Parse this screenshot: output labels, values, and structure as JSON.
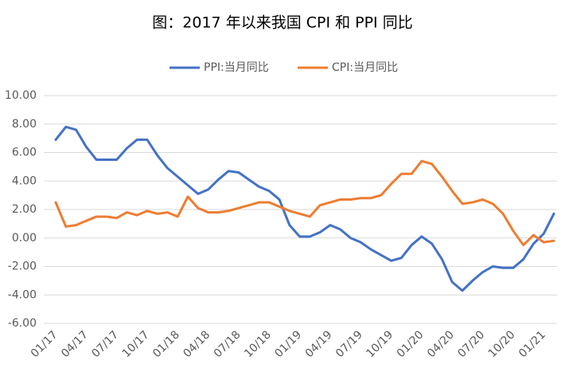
{
  "chart_data": {
    "type": "line",
    "title": "图：2017 年以来我国 CPI 和 PPI 同比",
    "categories": [
      "01/17",
      null,
      null,
      "04/17",
      null,
      null,
      "07/17",
      null,
      null,
      "10/17",
      null,
      null,
      "01/18",
      null,
      null,
      "04/18",
      null,
      null,
      "07/18",
      null,
      null,
      "10/18",
      null,
      null,
      "01/19",
      null,
      null,
      "04/19",
      null,
      null,
      "07/19",
      null,
      null,
      "10/19",
      null,
      null,
      "01/20",
      null,
      null,
      "04/20",
      null,
      null,
      "07/20",
      null,
      null,
      "10/20",
      null,
      null,
      "01/21",
      null
    ],
    "series": [
      {
        "name": "PPI:当月同比",
        "color": "#4472c4",
        "values": [
          6.9,
          7.8,
          7.6,
          6.4,
          5.5,
          5.5,
          5.5,
          6.3,
          6.9,
          6.9,
          5.8,
          4.9,
          4.3,
          3.7,
          3.1,
          3.4,
          4.1,
          4.7,
          4.6,
          4.1,
          3.6,
          3.3,
          2.7,
          0.9,
          0.1,
          0.1,
          0.4,
          0.9,
          0.6,
          0.0,
          -0.3,
          -0.8,
          -1.2,
          -1.6,
          -1.4,
          -0.5,
          0.1,
          -0.4,
          -1.5,
          -3.1,
          -3.7,
          -3.0,
          -2.4,
          -2.0,
          -2.1,
          -2.1,
          -1.5,
          -0.4,
          0.3,
          1.7
        ]
      },
      {
        "name": "CPI:当月同比",
        "color": "#ed7d31",
        "values": [
          2.5,
          0.8,
          0.9,
          1.2,
          1.5,
          1.5,
          1.4,
          1.8,
          1.6,
          1.9,
          1.7,
          1.8,
          1.5,
          2.9,
          2.1,
          1.8,
          1.8,
          1.9,
          2.1,
          2.3,
          2.5,
          2.5,
          2.2,
          1.9,
          1.7,
          1.5,
          2.3,
          2.5,
          2.7,
          2.7,
          2.8,
          2.8,
          3.0,
          3.8,
          4.5,
          4.5,
          5.4,
          5.2,
          4.3,
          3.3,
          2.4,
          2.5,
          2.7,
          2.4,
          1.7,
          0.5,
          -0.5,
          0.2,
          -0.3,
          -0.2
        ]
      }
    ],
    "ylim": [
      -6,
      10
    ],
    "yticks": [
      {
        "value": -6,
        "label": "-6.00"
      },
      {
        "value": -4,
        "label": "-4.00"
      },
      {
        "value": -2,
        "label": "-2.00"
      },
      {
        "value": 0,
        "label": "0.00"
      },
      {
        "value": 2,
        "label": "2.00"
      },
      {
        "value": 4,
        "label": "4.00"
      },
      {
        "value": 6,
        "label": "6.00"
      },
      {
        "value": 8,
        "label": "8.00"
      },
      {
        "value": 10,
        "label": "10.00"
      }
    ],
    "grid": true
  }
}
